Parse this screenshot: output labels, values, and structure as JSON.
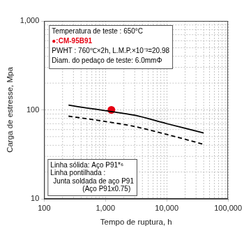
{
  "chart_data": {
    "type": "line",
    "log": true,
    "grid": true,
    "x_label": "Tempo de ruptura, h",
    "y_label": "Carga de estresse, Mpa",
    "xlim": [
      100,
      100000
    ],
    "xticks": [
      100,
      {
        "value": 1000,
        "label": "1,000"
      },
      {
        "value": 10000,
        "label": "10,000"
      },
      {
        "value": 100000,
        "label": "100,000"
      }
    ],
    "ylim": [
      10,
      1000
    ],
    "yticks": [
      10,
      100,
      {
        "value": 1000,
        "label": "1,000"
      }
    ],
    "series": [
      {
        "type": "line",
        "line_style": "solid",
        "color": "#000000",
        "x": [
          250,
          500,
          1000,
          3000,
          10000,
          40000
        ],
        "values": [
          113,
          105,
          98,
          87,
          70,
          55
        ]
      },
      {
        "type": "line",
        "line_style": "dashed",
        "color": "#000000",
        "x": [
          250,
          1000,
          3000,
          10000,
          40000
        ],
        "values": [
          85,
          74,
          65,
          53,
          41
        ]
      },
      {
        "type": "scatter",
        "marker": "circle",
        "color": "#e60012",
        "x": [
          1250
        ],
        "values": [
          100
        ]
      }
    ],
    "annotations": [
      {
        "lines": [
          {
            "text": "Temperatura de teste : 650°C"
          },
          {
            "text": "●:CM-95B91",
            "color": "#e60012"
          },
          {
            "text": "PWHT : 760℃×2h, L.M.P.×10⁻³=20.98"
          },
          {
            "text": "Diam. do pedaço de teste: 6.0mmΦ"
          }
        ]
      },
      {
        "lines": [
          {
            "text": "Linha sólida: Aço P91*⁶"
          },
          {
            "text": "Linha pontilhada :"
          },
          {
            "text": "Junta soldada de aço P91"
          },
          {
            "text": "(Aço P91x0.75)"
          }
        ]
      }
    ]
  }
}
